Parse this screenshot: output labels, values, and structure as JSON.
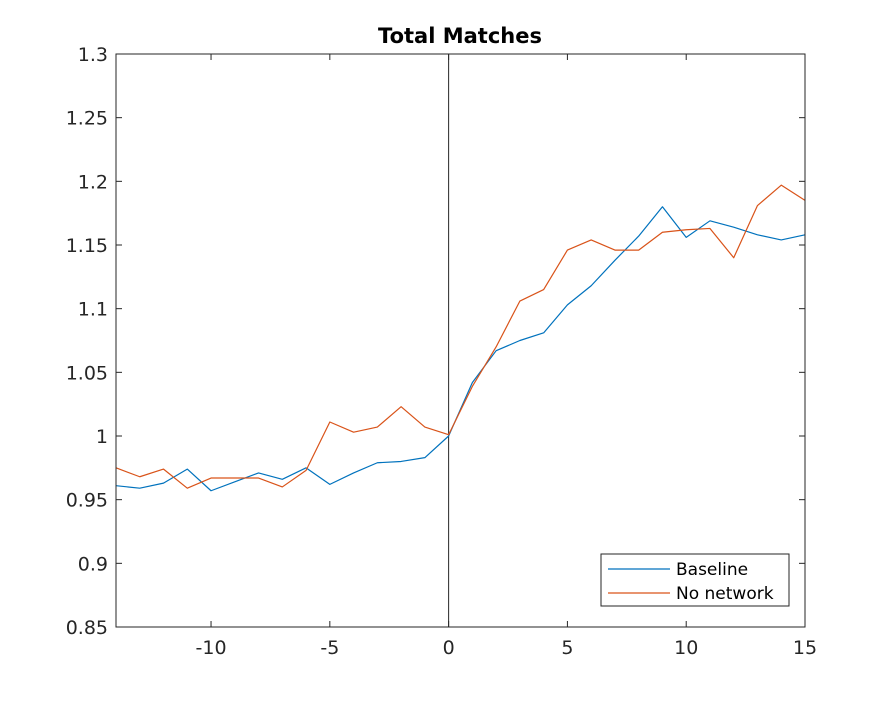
{
  "chart_data": {
    "type": "line",
    "title": "Total Matches",
    "xlabel": "",
    "ylabel": "",
    "xlim": [
      -14,
      15
    ],
    "ylim": [
      0.85,
      1.3
    ],
    "xticks": [
      -10,
      -5,
      0,
      5,
      10,
      15
    ],
    "xtick_labels": [
      "-10",
      "-5",
      "0",
      "5",
      "10",
      "15"
    ],
    "yticks": [
      0.85,
      0.9,
      0.95,
      1,
      1.05,
      1.1,
      1.15,
      1.2,
      1.25,
      1.3
    ],
    "ytick_labels": [
      "0.85",
      "0.9",
      "0.95",
      "1",
      "1.05",
      "1.1",
      "1.15",
      "1.2",
      "1.25",
      "1.3"
    ],
    "grid": false,
    "reference_line_x": 0,
    "legend_position": "bottom-right",
    "x": [
      -14,
      -13,
      -12,
      -11,
      -10,
      -9,
      -8,
      -7,
      -6,
      -5,
      -4,
      -3,
      -2,
      -1,
      0,
      1,
      2,
      3,
      4,
      5,
      6,
      7,
      8,
      9,
      10,
      11,
      12,
      13,
      14,
      15
    ],
    "series": [
      {
        "name": "Baseline",
        "color": "#0072BD",
        "values": [
          0.961,
          0.959,
          0.963,
          0.974,
          0.957,
          0.964,
          0.971,
          0.966,
          0.975,
          0.962,
          0.971,
          0.979,
          0.98,
          0.983,
          1.0,
          1.042,
          1.067,
          1.075,
          1.081,
          1.103,
          1.118,
          1.138,
          1.157,
          1.18,
          1.156,
          1.169,
          1.164,
          1.158,
          1.154,
          1.158
        ]
      },
      {
        "name": "No network",
        "color": "#D95319",
        "values": [
          0.975,
          0.968,
          0.974,
          0.959,
          0.967,
          0.967,
          0.967,
          0.96,
          0.973,
          1.011,
          1.003,
          1.007,
          1.023,
          1.007,
          1.001,
          1.039,
          1.07,
          1.106,
          1.115,
          1.146,
          1.154,
          1.146,
          1.146,
          1.16,
          1.162,
          1.163,
          1.14,
          1.181,
          1.197,
          1.185
        ]
      }
    ]
  }
}
